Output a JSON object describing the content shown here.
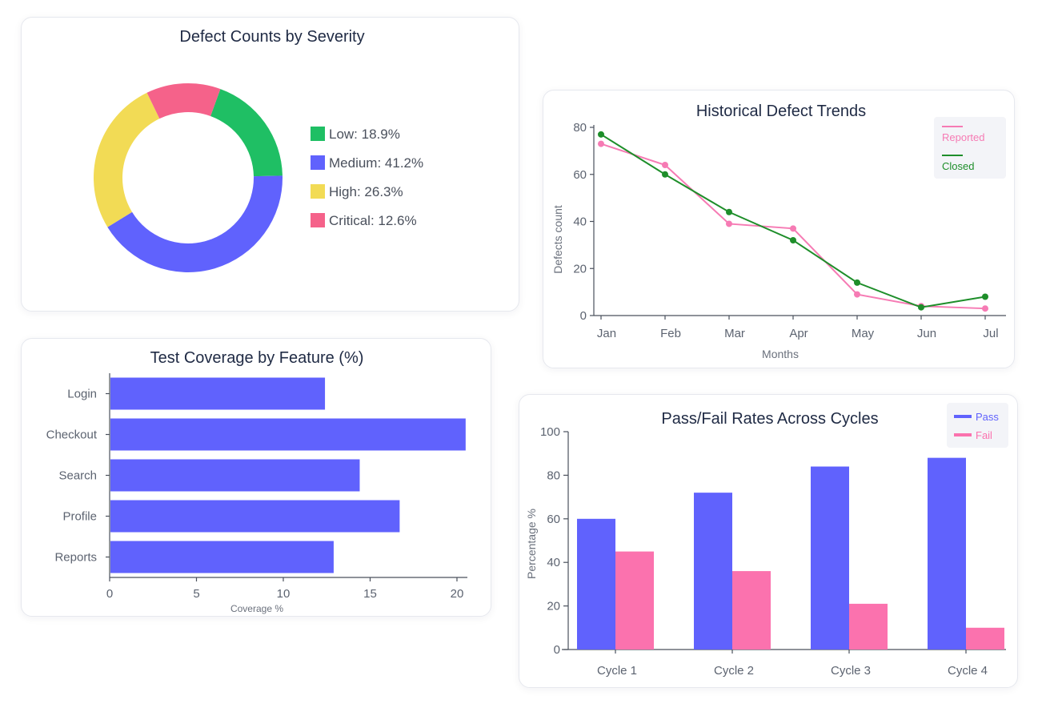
{
  "colors": {
    "low": "#1fbf64",
    "medium": "#6062fd",
    "high": "#f2db55",
    "critical": "#f5628a",
    "reported": "#f67bb4",
    "closed": "#1e8e2a",
    "pass": "#6062fd",
    "fail": "#fb72ae"
  },
  "chart_data": [
    {
      "type": "pie",
      "variant": "donut",
      "title": "Defect Counts by Severity",
      "legend_position": "right",
      "slices": [
        {
          "label": "Low",
          "value": 18.9,
          "legend": "Low: 18.9%",
          "color": "#1fbf64"
        },
        {
          "label": "Medium",
          "value": 41.2,
          "legend": "Medium: 41.2%",
          "color": "#6062fd"
        },
        {
          "label": "High",
          "value": 26.3,
          "legend": "High: 26.3%",
          "color": "#f2db55"
        },
        {
          "label": "Critical",
          "value": 12.6,
          "legend": "Critical: 12.6%",
          "color": "#f5628a"
        }
      ]
    },
    {
      "type": "line",
      "title": "Historical Defect Trends",
      "xlabel": "Months",
      "ylabel": "Defects count",
      "x": [
        "Jan",
        "Feb",
        "Mar",
        "Apr",
        "May",
        "Jun",
        "Jul"
      ],
      "ylim": [
        0,
        80
      ],
      "yticks": [
        "0",
        "20",
        "40",
        "60",
        "80"
      ],
      "legend_position": "top-right",
      "series": [
        {
          "name": "Reported",
          "values": [
            73,
            64,
            39,
            37,
            9,
            4,
            3
          ],
          "color": "#f67bb4"
        },
        {
          "name": "Closed",
          "values": [
            77,
            60,
            44,
            32,
            14,
            3.5,
            8
          ],
          "color": "#1e8e2a"
        }
      ]
    },
    {
      "type": "bar",
      "orientation": "horizontal",
      "title": "Test Coverage by Feature (%)",
      "xlabel": "Coverage %",
      "ylabel": "",
      "categories": [
        "Login",
        "Checkout",
        "Search",
        "Profile",
        "Reports"
      ],
      "values": [
        12.4,
        20.5,
        14.4,
        16.7,
        12.9
      ],
      "xlim": [
        0,
        20.6
      ],
      "xticks": [
        "0",
        "5",
        "10",
        "15",
        "20"
      ],
      "color": "#6062fd"
    },
    {
      "type": "bar",
      "title": "Pass/Fail Rates Across Cycles",
      "xlabel": "",
      "ylabel": "Percentage %",
      "categories": [
        "Cycle 1",
        "Cycle 2",
        "Cycle 3",
        "Cycle 4"
      ],
      "ylim": [
        0,
        100
      ],
      "yticks": [
        "0",
        "20",
        "40",
        "60",
        "80",
        "100"
      ],
      "legend_position": "top-right",
      "series": [
        {
          "name": "Pass",
          "values": [
            60,
            72,
            84,
            88
          ],
          "color": "#6062fd"
        },
        {
          "name": "Fail",
          "values": [
            45,
            36,
            21,
            10
          ],
          "color": "#fb72ae"
        }
      ]
    }
  ]
}
